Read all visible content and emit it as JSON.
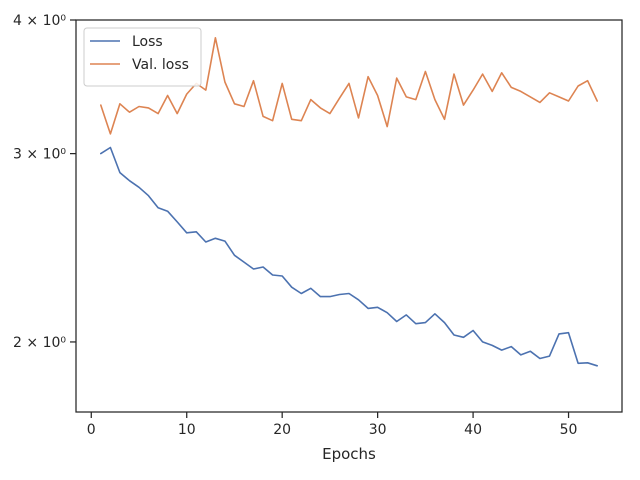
{
  "chart_data": {
    "type": "line",
    "title": "",
    "xlabel": "Epochs",
    "ylabel": "",
    "xlim": [
      -1.6,
      55.6
    ],
    "ylim": [
      1.72,
      4.0
    ],
    "yscale": "log",
    "grid": false,
    "legend_position": "top-left",
    "x_ticks": [
      {
        "value": 0,
        "label": "0"
      },
      {
        "value": 10,
        "label": "10"
      },
      {
        "value": 20,
        "label": "20"
      },
      {
        "value": 30,
        "label": "30"
      },
      {
        "value": 40,
        "label": "40"
      },
      {
        "value": 50,
        "label": "50"
      }
    ],
    "y_ticks": [
      {
        "value": 2,
        "label": "2 × 10⁰"
      },
      {
        "value": 3,
        "label": "3 × 10⁰"
      },
      {
        "value": 4,
        "label": "4 × 10⁰"
      }
    ],
    "x": [
      1,
      2,
      3,
      4,
      5,
      6,
      7,
      8,
      9,
      10,
      11,
      12,
      13,
      14,
      15,
      16,
      17,
      18,
      19,
      20,
      21,
      22,
      23,
      24,
      25,
      26,
      27,
      28,
      29,
      30,
      31,
      32,
      33,
      34,
      35,
      36,
      37,
      38,
      39,
      40,
      41,
      42,
      43,
      44,
      45,
      46,
      47,
      48,
      49,
      50,
      51,
      52,
      53
    ],
    "series": [
      {
        "name": "Loss",
        "color": "#4c72b0",
        "values": [
          3.0,
          3.04,
          2.88,
          2.83,
          2.79,
          2.74,
          2.67,
          2.65,
          2.59,
          2.53,
          2.535,
          2.48,
          2.5,
          2.485,
          2.41,
          2.375,
          2.34,
          2.35,
          2.31,
          2.305,
          2.25,
          2.22,
          2.245,
          2.205,
          2.205,
          2.215,
          2.22,
          2.19,
          2.15,
          2.155,
          2.13,
          2.09,
          2.12,
          2.08,
          2.085,
          2.125,
          2.085,
          2.03,
          2.02,
          2.05,
          2.0,
          1.985,
          1.965,
          1.98,
          1.945,
          1.96,
          1.93,
          1.94,
          2.035,
          2.04,
          1.91,
          1.912,
          1.9
        ]
      },
      {
        "name": "Val. loss",
        "color": "#dd8452",
        "values": [
          3.33,
          3.13,
          3.34,
          3.28,
          3.32,
          3.31,
          3.27,
          3.4,
          3.27,
          3.41,
          3.49,
          3.44,
          3.85,
          3.5,
          3.34,
          3.32,
          3.51,
          3.25,
          3.22,
          3.49,
          3.23,
          3.22,
          3.37,
          3.31,
          3.27,
          3.38,
          3.49,
          3.24,
          3.54,
          3.4,
          3.18,
          3.53,
          3.39,
          3.37,
          3.58,
          3.37,
          3.23,
          3.56,
          3.33,
          3.44,
          3.56,
          3.43,
          3.57,
          3.46,
          3.43,
          3.39,
          3.35,
          3.42,
          3.39,
          3.36,
          3.47,
          3.51,
          3.36
        ]
      }
    ]
  }
}
